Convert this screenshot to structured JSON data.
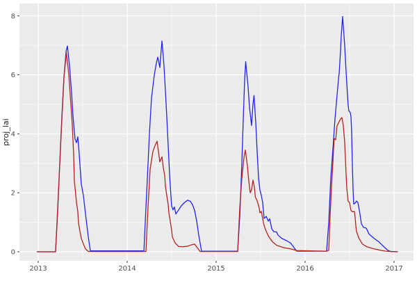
{
  "figure": {
    "ylabel": "proj_lai"
  },
  "chart_data": {
    "type": "line",
    "title": "",
    "xlabel": "",
    "ylabel": "proj_lai",
    "legend": "none",
    "grid": true,
    "style": "ggplot2-grey-panel-white-gridlines",
    "x_ticks": [
      2013,
      2014,
      2015,
      2016,
      2017
    ],
    "x_tick_labels": [
      "2013",
      "2014",
      "2015",
      "2016",
      "2017"
    ],
    "y_ticks": [
      0,
      2,
      4,
      6,
      8
    ],
    "y_tick_labels": [
      "0",
      "2",
      "4",
      "6",
      "8"
    ],
    "x_minor_ticks": [
      2013.5,
      2014.5,
      2015.5,
      2016.5
    ],
    "y_minor_ticks": [
      1,
      3,
      5,
      7
    ],
    "x_domain": [
      2012.789,
      2017.219
    ],
    "y_domain": [
      -0.307,
      8.42
    ],
    "colors": {
      "panel_bg": "#ebebeb",
      "grid": "#ffffff",
      "tick_text": "#4d4d4d",
      "axis_title": "#1a1a1a",
      "tick_mark": "#333333"
    },
    "series": [
      {
        "name": "blue-series",
        "color": "#2323e6",
        "points": [
          [
            2012.988,
            0
          ],
          [
            2013.195,
            0
          ],
          [
            2013.219,
            1.4
          ],
          [
            2013.242,
            3.0
          ],
          [
            2013.266,
            4.6
          ],
          [
            2013.289,
            5.9
          ],
          [
            2013.313,
            6.8
          ],
          [
            2013.328,
            6.98
          ],
          [
            2013.352,
            6.3
          ],
          [
            2013.375,
            5.4
          ],
          [
            2013.391,
            4.6
          ],
          [
            2013.414,
            3.82
          ],
          [
            2013.43,
            3.7
          ],
          [
            2013.445,
            3.9
          ],
          [
            2013.461,
            3.3
          ],
          [
            2013.484,
            2.3
          ],
          [
            2013.508,
            1.9
          ],
          [
            2013.531,
            1.3
          ],
          [
            2013.563,
            0.5
          ],
          [
            2013.586,
            0.03
          ],
          [
            2014.188,
            0.03
          ],
          [
            2014.203,
            1.0
          ],
          [
            2014.227,
            2.5
          ],
          [
            2014.25,
            4.0
          ],
          [
            2014.273,
            5.2
          ],
          [
            2014.305,
            6.0
          ],
          [
            2014.328,
            6.4
          ],
          [
            2014.344,
            6.6
          ],
          [
            2014.367,
            6.25
          ],
          [
            2014.391,
            7.15
          ],
          [
            2014.414,
            6.3
          ],
          [
            2014.438,
            5.0
          ],
          [
            2014.461,
            3.6
          ],
          [
            2014.477,
            2.6
          ],
          [
            2014.492,
            1.9
          ],
          [
            2014.5,
            1.55
          ],
          [
            2014.516,
            1.42
          ],
          [
            2014.531,
            1.52
          ],
          [
            2014.547,
            1.28
          ],
          [
            2014.578,
            1.42
          ],
          [
            2014.609,
            1.56
          ],
          [
            2014.648,
            1.68
          ],
          [
            2014.68,
            1.75
          ],
          [
            2014.711,
            1.71
          ],
          [
            2014.734,
            1.6
          ],
          [
            2014.758,
            1.4
          ],
          [
            2014.781,
            1.05
          ],
          [
            2014.805,
            0.55
          ],
          [
            2014.836,
            0.02
          ],
          [
            2015.242,
            0.02
          ],
          [
            2015.266,
            1.2
          ],
          [
            2015.289,
            3.0
          ],
          [
            2015.305,
            4.5
          ],
          [
            2015.32,
            5.8
          ],
          [
            2015.332,
            6.45
          ],
          [
            2015.359,
            5.6
          ],
          [
            2015.375,
            4.9
          ],
          [
            2015.398,
            4.28
          ],
          [
            2015.414,
            5.0
          ],
          [
            2015.426,
            5.3
          ],
          [
            2015.445,
            4.4
          ],
          [
            2015.461,
            3.4
          ],
          [
            2015.477,
            2.5
          ],
          [
            2015.492,
            2.1
          ],
          [
            2015.508,
            1.91
          ],
          [
            2015.523,
            1.67
          ],
          [
            2015.539,
            1.13
          ],
          [
            2015.563,
            1.2
          ],
          [
            2015.586,
            1.04
          ],
          [
            2015.602,
            1.12
          ],
          [
            2015.625,
            0.78
          ],
          [
            2015.648,
            0.68
          ],
          [
            2015.68,
            0.67
          ],
          [
            2015.695,
            0.57
          ],
          [
            2015.734,
            0.46
          ],
          [
            2015.789,
            0.38
          ],
          [
            2015.836,
            0.3
          ],
          [
            2015.875,
            0.14
          ],
          [
            2015.906,
            0.02
          ],
          [
            2016.242,
            0.02
          ],
          [
            2016.266,
            1.0
          ],
          [
            2016.289,
            2.5
          ],
          [
            2016.313,
            3.5
          ],
          [
            2016.336,
            4.5
          ],
          [
            2016.359,
            5.3
          ],
          [
            2016.371,
            5.7
          ],
          [
            2016.379,
            5.96
          ],
          [
            2016.383,
            6.04
          ],
          [
            2016.398,
            6.8
          ],
          [
            2016.406,
            7.3
          ],
          [
            2016.422,
            7.98
          ],
          [
            2016.438,
            7.3
          ],
          [
            2016.445,
            7.0
          ],
          [
            2016.461,
            6.1
          ],
          [
            2016.477,
            5.3
          ],
          [
            2016.484,
            4.98
          ],
          [
            2016.492,
            4.78
          ],
          [
            2016.508,
            4.72
          ],
          [
            2016.516,
            4.58
          ],
          [
            2016.523,
            4.1
          ],
          [
            2016.531,
            3.0
          ],
          [
            2016.539,
            2.15
          ],
          [
            2016.547,
            1.62
          ],
          [
            2016.563,
            1.65
          ],
          [
            2016.578,
            1.72
          ],
          [
            2016.594,
            1.67
          ],
          [
            2016.617,
            1.28
          ],
          [
            2016.633,
            0.95
          ],
          [
            2016.656,
            0.83
          ],
          [
            2016.688,
            0.8
          ],
          [
            2016.719,
            0.6
          ],
          [
            2016.773,
            0.46
          ],
          [
            2016.828,
            0.34
          ],
          [
            2016.883,
            0.18
          ],
          [
            2016.93,
            0.05
          ],
          [
            2016.961,
            0.01
          ],
          [
            2017.039,
            0.0
          ]
        ]
      },
      {
        "name": "firebrick-series",
        "color": "#b22222",
        "points": [
          [
            2012.988,
            0
          ],
          [
            2013.195,
            0
          ],
          [
            2013.227,
            2.0
          ],
          [
            2013.258,
            4.0
          ],
          [
            2013.289,
            5.9
          ],
          [
            2013.316,
            6.75
          ],
          [
            2013.344,
            6.0
          ],
          [
            2013.367,
            5.0
          ],
          [
            2013.383,
            4.3
          ],
          [
            2013.398,
            3.3
          ],
          [
            2013.406,
            2.4
          ],
          [
            2013.418,
            2.05
          ],
          [
            2013.43,
            1.67
          ],
          [
            2013.445,
            1.36
          ],
          [
            2013.453,
            0.97
          ],
          [
            2013.469,
            0.69
          ],
          [
            2013.484,
            0.46
          ],
          [
            2013.508,
            0.26
          ],
          [
            2013.531,
            0.1
          ],
          [
            2013.563,
            0.01
          ],
          [
            2014.211,
            0.01
          ],
          [
            2014.234,
            1.5
          ],
          [
            2014.258,
            2.8
          ],
          [
            2014.289,
            3.4
          ],
          [
            2014.313,
            3.6
          ],
          [
            2014.336,
            3.75
          ],
          [
            2014.367,
            3.05
          ],
          [
            2014.391,
            3.22
          ],
          [
            2014.406,
            2.85
          ],
          [
            2014.422,
            2.58
          ],
          [
            2014.43,
            2.22
          ],
          [
            2014.445,
            1.91
          ],
          [
            2014.461,
            1.6
          ],
          [
            2014.469,
            1.32
          ],
          [
            2014.484,
            1.04
          ],
          [
            2014.5,
            0.73
          ],
          [
            2014.508,
            0.5
          ],
          [
            2014.539,
            0.3
          ],
          [
            2014.578,
            0.18
          ],
          [
            2014.625,
            0.17
          ],
          [
            2014.68,
            0.19
          ],
          [
            2014.727,
            0.24
          ],
          [
            2014.758,
            0.26
          ],
          [
            2014.797,
            0.1
          ],
          [
            2014.82,
            0.01
          ],
          [
            2015.242,
            0.01
          ],
          [
            2015.266,
            1.5
          ],
          [
            2015.289,
            2.5
          ],
          [
            2015.313,
            3.2
          ],
          [
            2015.328,
            3.45
          ],
          [
            2015.352,
            2.9
          ],
          [
            2015.367,
            2.4
          ],
          [
            2015.383,
            2.0
          ],
          [
            2015.398,
            2.1
          ],
          [
            2015.414,
            2.43
          ],
          [
            2015.43,
            2.2
          ],
          [
            2015.441,
            1.85
          ],
          [
            2015.461,
            1.73
          ],
          [
            2015.477,
            1.56
          ],
          [
            2015.484,
            1.48
          ],
          [
            2015.492,
            1.32
          ],
          [
            2015.508,
            1.37
          ],
          [
            2015.523,
            1.12
          ],
          [
            2015.539,
            0.89
          ],
          [
            2015.563,
            0.69
          ],
          [
            2015.594,
            0.5
          ],
          [
            2015.633,
            0.34
          ],
          [
            2015.68,
            0.22
          ],
          [
            2015.758,
            0.14
          ],
          [
            2015.836,
            0.1
          ],
          [
            2015.906,
            0.04
          ],
          [
            2016.242,
            0.02
          ],
          [
            2016.266,
            0.05
          ],
          [
            2016.281,
            1.2
          ],
          [
            2016.297,
            2.2
          ],
          [
            2016.313,
            3.05
          ],
          [
            2016.32,
            3.48
          ],
          [
            2016.328,
            3.84
          ],
          [
            2016.344,
            3.8
          ],
          [
            2016.359,
            4.27
          ],
          [
            2016.398,
            4.5
          ],
          [
            2016.414,
            4.55
          ],
          [
            2016.43,
            4.27
          ],
          [
            2016.445,
            3.72
          ],
          [
            2016.453,
            3.17
          ],
          [
            2016.461,
            2.62
          ],
          [
            2016.469,
            2.15
          ],
          [
            2016.484,
            1.71
          ],
          [
            2016.5,
            1.67
          ],
          [
            2016.516,
            1.4
          ],
          [
            2016.531,
            1.36
          ],
          [
            2016.555,
            1.36
          ],
          [
            2016.563,
            1.16
          ],
          [
            2016.57,
            0.89
          ],
          [
            2016.578,
            0.69
          ],
          [
            2016.605,
            0.46
          ],
          [
            2016.645,
            0.26
          ],
          [
            2016.695,
            0.17
          ],
          [
            2016.773,
            0.1
          ],
          [
            2016.852,
            0.05
          ],
          [
            2016.906,
            0.02
          ],
          [
            2017.039,
            0.0
          ]
        ]
      }
    ]
  }
}
